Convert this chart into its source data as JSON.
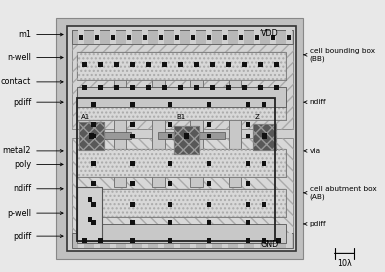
{
  "fig_width": 3.85,
  "fig_height": 2.72,
  "dpi": 100,
  "label_fontsize": 5.8,
  "bg_outer": "#c8c8c8",
  "bg_inner": "#d8d8d8",
  "nwell_bg": "#d0d0d0",
  "nwell_hatch_color": "#b8b8b8",
  "pwell_bg": "#d8d8d8",
  "metal1_color": "#b0b0b0",
  "metal1_edge": "#888888",
  "poly_color": "#c0c0c0",
  "poly_edge": "#888888",
  "ndiff_color": "#c8c8c8",
  "ndiff_edge": "#888888",
  "pdiff_color": "#c0c0c0",
  "contact_color": "#111111",
  "metal2_color": "#606060",
  "metal2_hatch": "#888888",
  "dark_gray": "#404040",
  "med_gray": "#909090",
  "annotations_left": [
    {
      "label": "m1",
      "yf": 0.875
    },
    {
      "label": "n-well",
      "yf": 0.79
    },
    {
      "label": "contact",
      "yf": 0.7
    },
    {
      "label": "pdiff",
      "yf": 0.625
    },
    {
      "label": "metal2",
      "yf": 0.445
    },
    {
      "label": "poly",
      "yf": 0.395
    },
    {
      "label": "ndiff",
      "yf": 0.305
    },
    {
      "label": "p-well",
      "yf": 0.215
    },
    {
      "label": "pdiff",
      "yf": 0.13
    }
  ],
  "annotations_right": [
    {
      "label": "cell bounding box\n(BB)",
      "yf": 0.8,
      "multiline": true
    },
    {
      "label": "ndiff",
      "yf": 0.625,
      "multiline": false
    },
    {
      "label": "via",
      "yf": 0.445,
      "multiline": false
    },
    {
      "label": "cell abutment box\n(AB)",
      "yf": 0.29,
      "multiline": true
    },
    {
      "label": "pdiff",
      "yf": 0.175,
      "multiline": false
    }
  ]
}
